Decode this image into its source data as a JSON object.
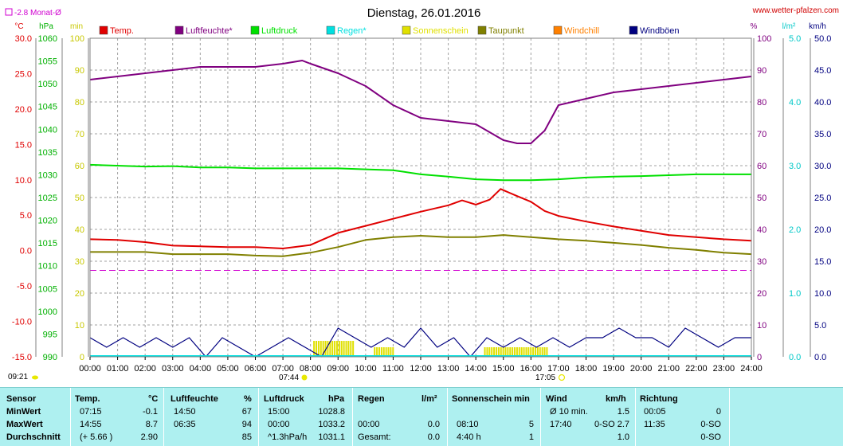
{
  "header": {
    "title": "Dienstag, 26.01.2016",
    "site": "www.wetter-pfalzen.com",
    "month_avg_label": "-2.8 Monat-Ø",
    "sunrise": "07:44",
    "sunset": "17:05",
    "moonrise": "09:21"
  },
  "colors": {
    "temp": "#e00000",
    "humidity": "#800080",
    "pressure": "#00e000",
    "rain": "#00e0e0",
    "sunshine": "#e0e000",
    "dewpoint": "#808000",
    "windchill": "#ff8000",
    "gust": "#000080",
    "month_avg": "#d000d0"
  },
  "chart_data": {
    "type": "line",
    "title": "Dienstag, 26.01.2016",
    "x_ticks": [
      "00:00",
      "01:00",
      "02:00",
      "03:00",
      "04:00",
      "05:00",
      "06:00",
      "07:00",
      "08:00",
      "09:00",
      "10:00",
      "11:00",
      "12:00",
      "13:00",
      "14:00",
      "15:00",
      "16:00",
      "17:00",
      "18:00",
      "19:00",
      "20:00",
      "21:00",
      "22:00",
      "23:00",
      "24:00"
    ],
    "axes": [
      {
        "key": "temp",
        "unit": "°C",
        "range": [
          -15,
          30
        ],
        "ticks": [
          "30.0",
          "25.0",
          "20.0",
          "15.0",
          "10.0",
          "5.0",
          "0.0",
          "-5.0",
          "-10.0",
          "-15.0"
        ]
      },
      {
        "key": "pressure",
        "unit": "hPa",
        "range": [
          990,
          1060
        ],
        "ticks": [
          "1060",
          "1055",
          "1050",
          "1045",
          "1040",
          "1035",
          "1030",
          "1025",
          "1020",
          "1015",
          "1010",
          "1005",
          "1000",
          "995",
          "990"
        ]
      },
      {
        "key": "minutes",
        "unit": "min",
        "range": [
          0,
          100
        ],
        "ticks": [
          "100",
          "90",
          "80",
          "70",
          "60",
          "50",
          "40",
          "30",
          "20",
          "10",
          "0"
        ]
      },
      {
        "key": "percent",
        "unit": "%",
        "range": [
          0,
          100
        ],
        "ticks": [
          "100",
          "90",
          "80",
          "70",
          "60",
          "50",
          "40",
          "30",
          "20",
          "10",
          "0"
        ]
      },
      {
        "key": "rain",
        "unit": "l/m²",
        "range": [
          0,
          5
        ],
        "ticks": [
          "5.0",
          "4.0",
          "3.0",
          "2.0",
          "1.0",
          "0.0"
        ]
      },
      {
        "key": "wind",
        "unit": "km/h",
        "range": [
          0,
          50
        ],
        "ticks": [
          "50.0",
          "45.0",
          "40.0",
          "35.0",
          "30.0",
          "25.0",
          "20.0",
          "15.0",
          "10.0",
          "5.0",
          "0.0"
        ]
      }
    ],
    "legend": [
      "Temp.",
      "Luftfeuchte*",
      "Luftdruck",
      "Regen*",
      "Sonnenschein",
      "Taupunkt",
      "Windchill",
      "Windböen"
    ],
    "month_avg_temp": -2.8,
    "series": [
      {
        "name": "Temp.",
        "axis": "temp",
        "x": [
          0,
          1,
          2,
          3,
          4,
          5,
          6,
          7,
          8,
          9,
          10,
          11,
          12,
          13,
          13.5,
          14,
          14.5,
          14.9,
          15.5,
          16,
          16.5,
          17,
          18,
          19,
          20,
          21,
          22,
          23,
          24
        ],
        "y": [
          1.6,
          1.5,
          1.2,
          0.7,
          0.6,
          0.5,
          0.5,
          0.3,
          0.8,
          2.5,
          3.5,
          4.5,
          5.5,
          6.4,
          7.1,
          6.5,
          7.2,
          8.7,
          7.7,
          6.9,
          5.6,
          4.9,
          4.1,
          3.4,
          2.8,
          2.2,
          1.9,
          1.6,
          1.4
        ]
      },
      {
        "name": "Taupunkt",
        "axis": "temp",
        "x": [
          0,
          2,
          3,
          4,
          5,
          6,
          7,
          8,
          9,
          10,
          11,
          12,
          13,
          14,
          15,
          16,
          17,
          18,
          19,
          20,
          21,
          22,
          23,
          24
        ],
        "y": [
          -0.2,
          -0.2,
          -0.5,
          -0.5,
          -0.5,
          -0.7,
          -0.8,
          -0.3,
          0.5,
          1.5,
          1.9,
          2.1,
          1.9,
          1.9,
          2.2,
          1.9,
          1.6,
          1.4,
          1.1,
          0.8,
          0.4,
          0.1,
          -0.3,
          -0.5
        ]
      },
      {
        "name": "Luftfeuchte*",
        "axis": "percent",
        "x": [
          0,
          1,
          2,
          3,
          4,
          5,
          6,
          7,
          7.7,
          8,
          9,
          10,
          11,
          12,
          13,
          14,
          15,
          15.5,
          16,
          16.5,
          17,
          18,
          19,
          20,
          21,
          22,
          23,
          24
        ],
        "y": [
          87,
          88,
          89,
          90,
          91,
          91,
          91,
          92,
          93,
          92,
          89,
          85,
          79,
          75,
          74,
          73,
          68,
          67,
          67,
          71,
          79,
          81,
          83,
          84,
          85,
          86,
          87,
          88
        ]
      },
      {
        "name": "Luftdruck",
        "axis": "pressure",
        "x": [
          0,
          2,
          3,
          4,
          5,
          6,
          7,
          8,
          9,
          10,
          11,
          12,
          13,
          14,
          15,
          16,
          17,
          18,
          19,
          20,
          21,
          22,
          23,
          24
        ],
        "y": [
          1032.2,
          1031.8,
          1031.9,
          1031.6,
          1031.6,
          1031.4,
          1031.4,
          1031.4,
          1031.4,
          1031.2,
          1031.0,
          1030.1,
          1029.6,
          1029.0,
          1028.8,
          1028.8,
          1029.0,
          1029.4,
          1029.6,
          1029.7,
          1029.9,
          1030.1,
          1030.1,
          1030.1
        ]
      },
      {
        "name": "Windböen",
        "axis": "wind",
        "x": [
          0,
          0.6,
          1.2,
          1.8,
          2.4,
          3,
          3.6,
          4.2,
          4.8,
          5.4,
          6,
          6.6,
          7.2,
          7.8,
          8.4,
          9,
          9.6,
          10.2,
          10.8,
          11.4,
          12,
          12.6,
          13.2,
          13.8,
          14.4,
          15,
          15.6,
          16.2,
          16.8,
          17.4,
          18,
          18.6,
          19.2,
          19.8,
          20.4,
          21,
          21.6,
          22.2,
          22.8,
          23.4,
          24
        ],
        "y": [
          3,
          1.5,
          3,
          1.5,
          3,
          1.5,
          3,
          0,
          3,
          1.5,
          0,
          1.5,
          3,
          1.5,
          0,
          4.5,
          3,
          1.5,
          3,
          1.5,
          4.5,
          1.5,
          3,
          0,
          3,
          1.5,
          3,
          1.5,
          3,
          1.5,
          3,
          3,
          4.5,
          3,
          3,
          1.5,
          4.5,
          3,
          1.5,
          3,
          3
        ]
      }
    ],
    "sunshine_minutes": [
      {
        "from": 8.1,
        "to": 9.6,
        "value": 5
      },
      {
        "from": 10.3,
        "to": 11.0,
        "value": 3
      },
      {
        "from": 14.3,
        "to": 16.6,
        "value": 3
      }
    ],
    "grid": true
  },
  "stats": {
    "headers": {
      "sensor": "Sensor",
      "temp": "Temp.",
      "temp_unit": "°C",
      "hum": "Luftfeuchte",
      "hum_unit": "%",
      "press": "Luftdruck",
      "press_unit": "hPa",
      "rain": "Regen",
      "rain_unit": "l/m²",
      "sun": "Sonnenschein min",
      "wind": "Wind",
      "wind_unit": "km/h",
      "dir": "Richtung"
    },
    "rows": [
      {
        "label": "MinWert",
        "temp_time": "07:15",
        "temp_val": "-0.1",
        "hum_time": "14:50",
        "hum_val": "67",
        "press_time": "15:00",
        "press_val": "1028.8",
        "rain_time": "",
        "rain_val": "",
        "sun_time": "",
        "sun_val": "",
        "wind_time": "Ø 10 min.",
        "wind_val": "1.5",
        "dir_time": "00:05",
        "dir_val": "0"
      },
      {
        "label": "MaxWert",
        "temp_time": "14:55",
        "temp_val": "8.7",
        "hum_time": "06:35",
        "hum_val": "94",
        "press_time": "00:00",
        "press_val": "1033.2",
        "rain_time": "00:00",
        "rain_val": "0.0",
        "sun_time": "08:10",
        "sun_val": "5",
        "wind_time": "17:40",
        "wind_val": "0-SO 2.7",
        "dir_time": "11:35",
        "dir_val": "0-SO"
      },
      {
        "label": "Durchschnitt",
        "temp_time": "(+ 5.66 )",
        "temp_val": "2.90",
        "hum_time": "",
        "hum_val": "85",
        "press_time": "^1.3hPa/h",
        "press_val": "1031.1",
        "rain_time": "Gesamt:",
        "rain_val": "0.0",
        "sun_time": "4:40 h",
        "sun_val": "1",
        "wind_time": "",
        "wind_val": "1.0",
        "dir_time": "",
        "dir_val": "0-SO"
      }
    ]
  }
}
